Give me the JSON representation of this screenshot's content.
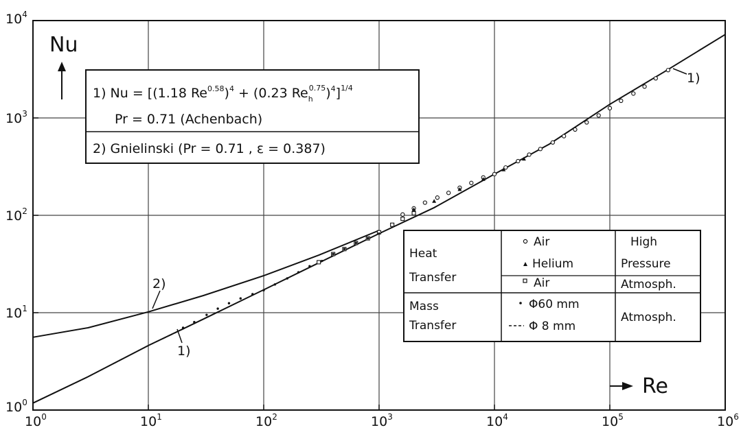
{
  "chart_data": {
    "type": "line",
    "xscale": "log",
    "yscale": "log",
    "xlim": [
      1,
      1000000
    ],
    "ylim": [
      1,
      10000
    ],
    "grid": true,
    "xlabel": "Re",
    "ylabel": "Nu",
    "x_tick_labels": [
      {
        "base": "10",
        "exp": "0"
      },
      {
        "base": "10",
        "exp": "1"
      },
      {
        "base": "10",
        "exp": "2"
      },
      {
        "base": "10",
        "exp": "3"
      },
      {
        "base": "10",
        "exp": "4"
      },
      {
        "base": "10",
        "exp": "5"
      },
      {
        "base": "10",
        "exp": "6"
      }
    ],
    "y_tick_labels": [
      {
        "base": "10",
        "exp": "0"
      },
      {
        "base": "10",
        "exp": "1"
      },
      {
        "base": "10",
        "exp": "2"
      },
      {
        "base": "10",
        "exp": "3"
      },
      {
        "base": "10",
        "exp": "4"
      }
    ],
    "series": [
      {
        "curve_label": "1)",
        "style": "solid",
        "x": [
          1,
          3,
          10,
          30,
          100,
          300,
          1000,
          3000,
          10000,
          30000,
          100000,
          300000,
          1000000
        ],
        "y": [
          1.18,
          2.2,
          4.6,
          8.6,
          17.2,
          32.5,
          65,
          120,
          265,
          540,
          1380,
          3000,
          7200
        ]
      },
      {
        "curve_label": "2)",
        "style": "solid",
        "x": [
          1,
          3,
          10,
          30,
          100,
          300,
          1000
        ],
        "y": [
          5.6,
          7.0,
          10.2,
          15.0,
          24,
          39,
          70
        ]
      },
      {
        "curve_label": "",
        "style": "dashed",
        "x": [
          1,
          3,
          10,
          20,
          40
        ],
        "y": [
          1.18,
          2.2,
          4.6,
          6.8,
          10.2
        ]
      }
    ],
    "points": {
      "air_high_pressure": {
        "marker": "circle",
        "x": [
          1600,
          2000,
          2500,
          3200,
          4000,
          5000,
          6300,
          8000,
          10000,
          12500,
          16000,
          20000,
          25000,
          32000,
          40000,
          50000,
          63000,
          80000,
          100000,
          125000,
          160000,
          200000,
          250000,
          320000
        ],
        "y": [
          102,
          118,
          135,
          152,
          170,
          192,
          215,
          245,
          265,
          310,
          360,
          420,
          480,
          560,
          650,
          760,
          900,
          1060,
          1260,
          1500,
          1780,
          2100,
          2550,
          3100
        ]
      },
      "helium_high_pressure": {
        "marker": "triangle",
        "x": [
          2000,
          3000,
          5000,
          8000,
          12000,
          18000
        ],
        "y": [
          115,
          140,
          185,
          235,
          295,
          380
        ]
      },
      "air_atmospheric": {
        "marker": "square",
        "x": [
          300,
          400,
          500,
          630,
          800,
          1000,
          1300,
          1600,
          2000
        ],
        "y": [
          33,
          40,
          45,
          52,
          58,
          67,
          80,
          92,
          105
        ]
      },
      "mass_phi60": {
        "marker": "dot",
        "x": [
          20,
          25,
          32,
          40,
          50,
          63,
          80,
          100,
          125,
          160,
          200,
          250,
          320,
          400,
          500,
          630,
          800,
          1000
        ],
        "y": [
          7.0,
          8.0,
          9.5,
          11,
          12.5,
          14,
          15.5,
          17,
          19.5,
          22.5,
          26,
          30,
          34,
          40,
          45,
          52,
          58,
          65
        ]
      }
    }
  },
  "equation_box": {
    "line1_prefix": "1) Nu = [(1.18 Re",
    "exp1": "0.58",
    "line1_mid1": ")",
    "pow4a": "4",
    "line1_mid2": " + (0.23 Re",
    "sub_h": "h",
    "exp2": "0.75",
    "line1_mid3": ")",
    "pow4b": "4",
    "line1_end": "]",
    "pow_quarter": "1/4",
    "line2": "Pr  = 0.71  (Achenbach)",
    "line3": "2)  Gnielinski  (Pr = 0.71 , ε = 0.387)"
  },
  "legend_table": {
    "heat_1": "Heat",
    "heat_2": "Transfer",
    "mass_1": "Mass",
    "mass_2": "Transfer",
    "r1": "Air",
    "r2": "Helium",
    "r3": "Air",
    "r4": "Φ60 mm",
    "r5": "Φ  8 mm",
    "c3_1": "High",
    "c3_2": "Pressure",
    "c3_3": "Atmosph.",
    "c3_4": "Atmosph."
  },
  "curve_labels": {
    "c1_upper": "1)",
    "c2": "2)",
    "c1_lower": "1)"
  }
}
